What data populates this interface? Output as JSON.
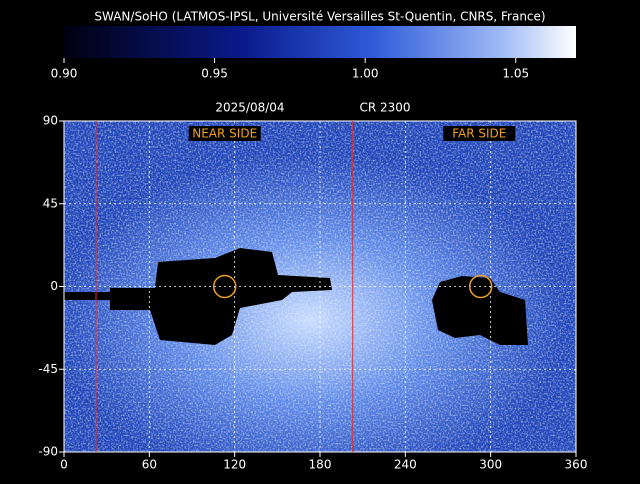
{
  "chart_data": {
    "type": "heatmap",
    "title": "SWAN/SoHO (LATMOS-IPSL, Université Versailles St-Quentin, CNRS, France)",
    "date": "2025/08/04",
    "rotation": "CR 2300",
    "annotations": [
      "NEAR SIDE",
      "FAR SIDE"
    ],
    "colorbar": {
      "lim": [
        0.9,
        1.07
      ],
      "ticks": [
        {
          "value": 0.9,
          "label": "0.90"
        },
        0.95,
        {
          "value": 1.0,
          "label": "1.00"
        },
        1.05
      ]
    },
    "xlim": [
      0,
      360
    ],
    "xticks": [
      0,
      60,
      120,
      180,
      240,
      300,
      360
    ],
    "ylim": [
      -90,
      90
    ],
    "yticks": [
      -90,
      -45,
      0,
      45,
      90
    ],
    "grid": true,
    "vertical_lines": {
      "color": "#e03030",
      "x": [
        22.5,
        203
      ]
    },
    "circles": {
      "color": "#f0a020",
      "x": [
        113,
        293
      ],
      "y": [
        0,
        0
      ]
    }
  }
}
